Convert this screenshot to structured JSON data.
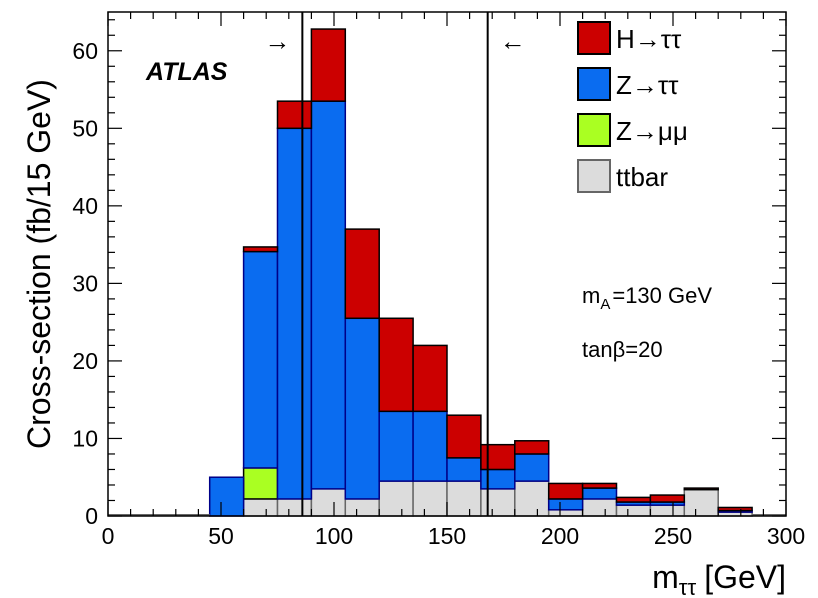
{
  "chart_data": {
    "type": "bar",
    "stacked": true,
    "histogram": true,
    "x_edges": [
      0,
      15,
      30,
      45,
      60,
      75,
      90,
      105,
      120,
      135,
      150,
      165,
      180,
      195,
      210,
      225,
      240,
      255,
      270,
      285,
      300
    ],
    "xlabel_base": "m",
    "xlabel_sub": "ττ",
    "xlabel_unit": "[GeV]",
    "ylabel": "Cross-section (fb/15 GeV)",
    "xlim": [
      0,
      300
    ],
    "ylim": [
      0,
      65
    ],
    "x_ticks": [
      0,
      50,
      100,
      150,
      200,
      250,
      300
    ],
    "y_ticks": [
      0,
      10,
      20,
      30,
      40,
      50,
      60
    ],
    "grid": false,
    "legend_position": "top-right",
    "series": [
      {
        "name": "ttbar",
        "color": "#dcdcdc",
        "edge_color": "#666666",
        "values": [
          0,
          0,
          0,
          0,
          2.2,
          2.2,
          3.5,
          2.2,
          4.5,
          4.5,
          4.5,
          3.5,
          4.5,
          0.8,
          2.2,
          1.4,
          1.4,
          3.4,
          0.5,
          0
        ]
      },
      {
        "name": "Z→μμ",
        "color": "#aaff22",
        "edge_color": "#000000",
        "values": [
          0,
          0,
          0,
          0,
          4.0,
          0,
          0,
          0,
          0,
          0,
          0,
          0,
          0,
          0,
          0,
          0,
          0,
          0,
          0,
          0
        ]
      },
      {
        "name": "Z→ττ",
        "color": "#0a6cf0",
        "edge_color": "#000088",
        "values": [
          0,
          0,
          0,
          5.0,
          27.9,
          47.8,
          50.0,
          23.3,
          9.0,
          9.0,
          3.0,
          2.5,
          3.5,
          1.4,
          1.4,
          0.4,
          0.4,
          0,
          0.2,
          0
        ]
      },
      {
        "name": "H→ττ",
        "color": "#cc0000",
        "edge_color": "#000000",
        "values": [
          0,
          0,
          0,
          0,
          0.6,
          3.5,
          9.3,
          11.5,
          12.0,
          8.5,
          5.5,
          3.2,
          1.7,
          2.0,
          0.6,
          0.6,
          0.9,
          0.2,
          0.4,
          0
        ]
      }
    ],
    "legend_order": [
      "H→ττ",
      "Z→ττ",
      "Z→μμ",
      "ttbar"
    ],
    "cut_lines": [
      {
        "x": 86,
        "arrow": "→"
      },
      {
        "x": 168,
        "arrow": "←"
      }
    ],
    "annotations": {
      "experiment": "ATLAS",
      "mass_base": "m",
      "mass_sub": "A",
      "mass_value": "=130 GeV",
      "tanbeta": "tanβ=20"
    }
  }
}
